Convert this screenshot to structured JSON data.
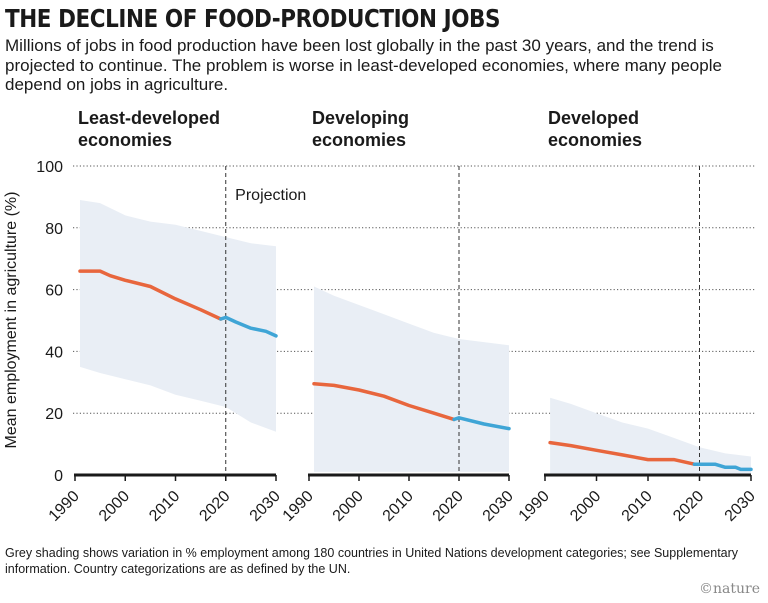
{
  "title": "THE DECLINE OF FOOD-PRODUCTION JOBS",
  "subtitle": "Millions of jobs in food production have been lost globally in the past 30 years, and the trend is projected to continue. The problem is worse in least-developed economies, where many people depend on jobs in agriculture.",
  "footnote": "Grey shading shows variation in % employment among 180 countries in United Nations development categories; see Supplementary information. Country categorizations are as defined by the UN.",
  "credit": "©nature",
  "colors": {
    "historical": "#e8663d",
    "projection": "#3fa5d6",
    "band": "#e9eef5",
    "axis": "#1a1a1a",
    "grid": "#555555"
  },
  "chart_data": {
    "type": "line",
    "title": "THE DECLINE OF FOOD-PRODUCTION JOBS",
    "ylabel": "Mean employment in agriculture (%)",
    "ylim": [
      0,
      100
    ],
    "yticks": [
      0,
      20,
      40,
      60,
      80,
      100
    ],
    "xlim": [
      1990,
      2030
    ],
    "xticks": [
      1990,
      2000,
      2010,
      2020,
      2030
    ],
    "projection_start": 2020,
    "projection_label": "Projection",
    "panels": [
      {
        "name": "Least-developed economies",
        "title_lines": [
          "Least-developed",
          "economies"
        ],
        "historical": {
          "x": [
            1991,
            1995,
            1997,
            2000,
            2005,
            2010,
            2015,
            2019
          ],
          "y": [
            66,
            66,
            64.5,
            63,
            61,
            57,
            53.5,
            50.5
          ]
        },
        "projection": {
          "x": [
            2019,
            2020,
            2022,
            2025,
            2028,
            2030
          ],
          "y": [
            50.5,
            51,
            49.5,
            47.5,
            46.5,
            45
          ]
        },
        "band": {
          "x": [
            1991,
            1995,
            2000,
            2005,
            2010,
            2015,
            2020,
            2025,
            2030
          ],
          "upper": [
            89,
            88,
            84,
            82,
            81,
            79,
            77,
            75,
            74
          ],
          "lower": [
            35,
            33,
            31,
            29,
            26,
            24,
            22,
            17,
            14
          ]
        }
      },
      {
        "name": "Developing economies",
        "title_lines": [
          "Developing",
          "economies"
        ],
        "historical": {
          "x": [
            1991,
            1995,
            2000,
            2005,
            2010,
            2015,
            2019
          ],
          "y": [
            29.5,
            29,
            27.5,
            25.5,
            22.5,
            20,
            18
          ]
        },
        "projection": {
          "x": [
            2019,
            2020,
            2025,
            2030
          ],
          "y": [
            18,
            18.5,
            16.5,
            15
          ]
        },
        "band": {
          "x": [
            1991,
            1995,
            2000,
            2005,
            2010,
            2015,
            2020,
            2025,
            2030
          ],
          "upper": [
            61,
            58,
            55,
            52,
            49,
            46,
            44,
            43,
            42
          ],
          "lower": [
            1,
            1,
            1,
            1,
            1,
            1,
            1,
            1,
            1
          ]
        }
      },
      {
        "name": "Developed economies",
        "title_lines": [
          "Developed",
          "economies"
        ],
        "historical": {
          "x": [
            1991,
            1993,
            1995,
            2000,
            2005,
            2010,
            2015,
            2019
          ],
          "y": [
            10.5,
            10,
            9.5,
            8,
            6.5,
            5,
            5,
            3.5
          ]
        },
        "projection": {
          "x": [
            2019,
            2020,
            2023,
            2025,
            2027,
            2028,
            2030
          ],
          "y": [
            3.5,
            3.5,
            3.5,
            2.5,
            2.5,
            1.8,
            1.8
          ]
        },
        "band": {
          "x": [
            1991,
            1995,
            2000,
            2005,
            2010,
            2015,
            2020,
            2025,
            2030
          ],
          "upper": [
            25,
            23,
            20,
            17,
            15,
            12,
            9,
            7,
            6
          ],
          "lower": [
            0.5,
            0.5,
            0.5,
            0.5,
            0.5,
            0.5,
            0.5,
            0.5,
            0.5
          ]
        }
      }
    ]
  }
}
